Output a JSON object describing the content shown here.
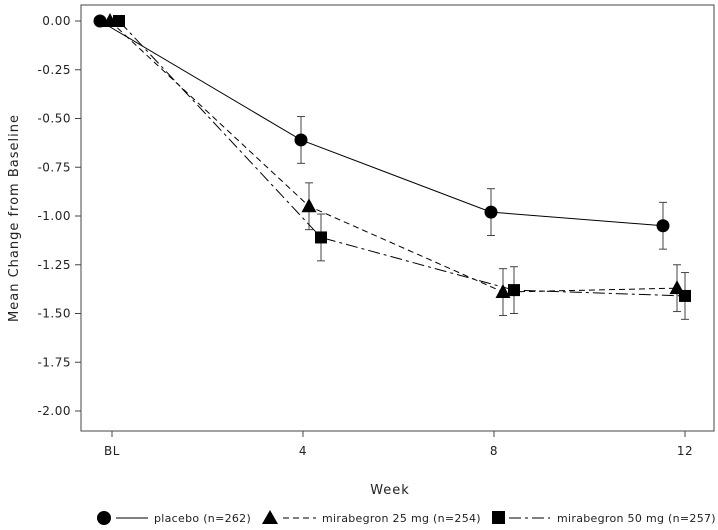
{
  "chart_data": {
    "type": "line",
    "xlabel": "Week",
    "ylabel": "Mean Change from Baseline",
    "categories": [
      "BL",
      "4",
      "8",
      "12"
    ],
    "x": [
      0,
      4,
      8,
      12
    ],
    "ylim": [
      -2.1,
      0.05
    ],
    "yticks": [
      "0.00",
      "-0.25",
      "-0.50",
      "-0.75",
      "-1.00",
      "-1.25",
      "-1.50",
      "-1.75",
      "-2.00"
    ],
    "grid": false,
    "legend_position": "bottom",
    "series": [
      {
        "name": "placebo (n=262)",
        "marker": "circle",
        "line_style": "solid",
        "values": [
          0.0,
          -0.61,
          -0.98,
          -1.05
        ],
        "error": [
          0,
          0.12,
          0.12,
          0.12
        ],
        "color": "#000000"
      },
      {
        "name": "mirabegron 25 mg (n=254)",
        "marker": "triangle",
        "line_style": "dashed",
        "values": [
          0.0,
          -0.95,
          -1.39,
          -1.37
        ],
        "error": [
          0,
          0.12,
          0.12,
          0.12
        ],
        "color": "#000000"
      },
      {
        "name": "mirabegron 50 mg (n=257)",
        "marker": "square",
        "line_style": "dashdot",
        "values": [
          0.0,
          -1.11,
          -1.38,
          -1.41
        ],
        "error": [
          0,
          0.12,
          0.12,
          0.12
        ],
        "color": "#000000"
      }
    ]
  }
}
